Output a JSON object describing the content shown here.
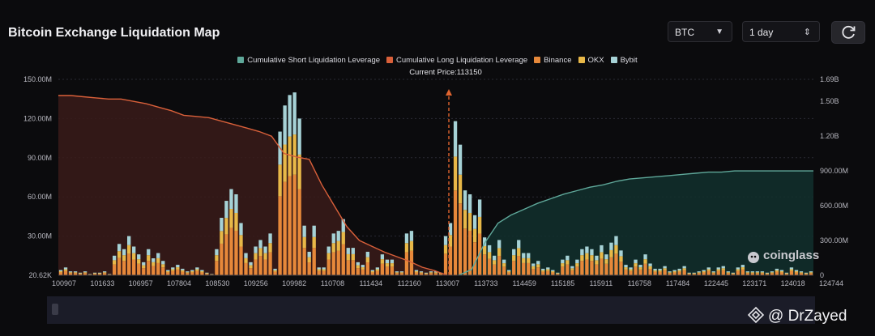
{
  "header": {
    "title": "Bitcoin Exchange Liquidation Map",
    "coin_select": {
      "value": "BTC"
    },
    "range_select": {
      "value": "1 day"
    }
  },
  "watermark": {
    "brand": "coinglass"
  },
  "footer": {
    "handle": "@ DrZayed"
  },
  "chart_data": {
    "type": "bar",
    "current_price_label": "Current Price:113150",
    "current_price": 113150,
    "x_tick_labels": [
      "100907",
      "101633",
      "106957",
      "107804",
      "108530",
      "109256",
      "109982",
      "110708",
      "111434",
      "112160",
      "113007",
      "113733",
      "114459",
      "115185",
      "115911",
      "116758",
      "117484",
      "122445",
      "123171",
      "124018",
      "124744"
    ],
    "left_axis": {
      "ticks": [
        "20.62K",
        "30.00M",
        "60.00M",
        "90.00M",
        "120.00M",
        "150.00M"
      ],
      "range": [
        0,
        150
      ]
    },
    "right_axis": {
      "ticks": [
        "0",
        "300.00M",
        "600.00M",
        "900.00M",
        "1.20B",
        "1.50B",
        "1.69B"
      ],
      "range": [
        0,
        1.69
      ]
    },
    "legend": [
      {
        "name": "Cumulative Short Liquidation Leverage",
        "color": "#5fa89a"
      },
      {
        "name": "Cumulative Long Liquidation Leverage",
        "color": "#d9603a"
      },
      {
        "name": "Binance",
        "color": "#e6883a"
      },
      {
        "name": "OKX",
        "color": "#e8b848"
      },
      {
        "name": "Bybit",
        "color": "#a6d2d6"
      }
    ],
    "bar_totals_M": [
      4,
      6,
      3,
      3,
      2,
      3,
      1,
      2,
      2,
      3,
      1,
      15,
      24,
      20,
      30,
      22,
      16,
      10,
      20,
      13,
      17,
      11,
      4,
      6,
      8,
      5,
      3,
      4,
      6,
      4,
      2,
      1,
      20,
      44,
      57,
      66,
      62,
      40,
      17,
      10,
      22,
      27,
      22,
      32,
      5,
      110,
      130,
      138,
      140,
      120,
      38,
      18,
      38,
      6,
      6,
      22,
      32,
      34,
      43,
      21,
      21,
      10,
      8,
      18,
      4,
      6,
      16,
      12,
      12,
      3,
      3,
      32,
      34,
      4,
      3,
      2,
      3,
      3,
      2,
      30,
      40,
      118,
      100,
      65,
      62,
      46,
      58,
      29,
      23,
      15,
      27,
      12,
      4,
      20,
      27,
      17,
      17,
      9,
      11,
      5,
      6,
      4,
      2,
      12,
      15,
      7,
      12,
      20,
      22,
      20,
      15,
      23,
      16,
      25,
      30,
      19,
      8,
      6,
      12,
      8,
      16,
      9,
      5,
      5,
      7,
      3,
      4,
      5,
      7,
      2,
      2,
      3,
      4,
      6,
      3,
      6,
      7,
      3,
      2,
      6,
      8,
      3,
      3,
      3,
      3,
      2,
      3,
      5,
      4,
      2,
      6,
      4,
      3,
      2,
      3
    ],
    "bar_share_binance": 0.55,
    "bar_share_okx": 0.22,
    "cumulative_long_B": [
      1.55,
      1.55,
      1.54,
      1.53,
      1.52,
      1.52,
      1.5,
      1.48,
      1.45,
      1.42,
      1.38,
      1.37,
      1.36,
      1.33,
      1.3,
      1.27,
      1.24,
      1.2,
      1.05,
      1.02,
      1.0,
      0.78,
      0.6,
      0.42,
      0.3,
      0.25,
      0.2,
      0.16,
      0.12,
      0.07,
      0.04,
      0.0
    ],
    "cumulative_short_B": [
      0.0,
      0.05,
      0.28,
      0.45,
      0.52,
      0.57,
      0.62,
      0.66,
      0.7,
      0.73,
      0.76,
      0.78,
      0.81,
      0.83,
      0.84,
      0.85,
      0.86,
      0.87,
      0.88,
      0.89,
      0.89,
      0.9,
      0.9,
      0.9,
      0.9,
      0.9,
      0.9,
      0.9
    ]
  }
}
